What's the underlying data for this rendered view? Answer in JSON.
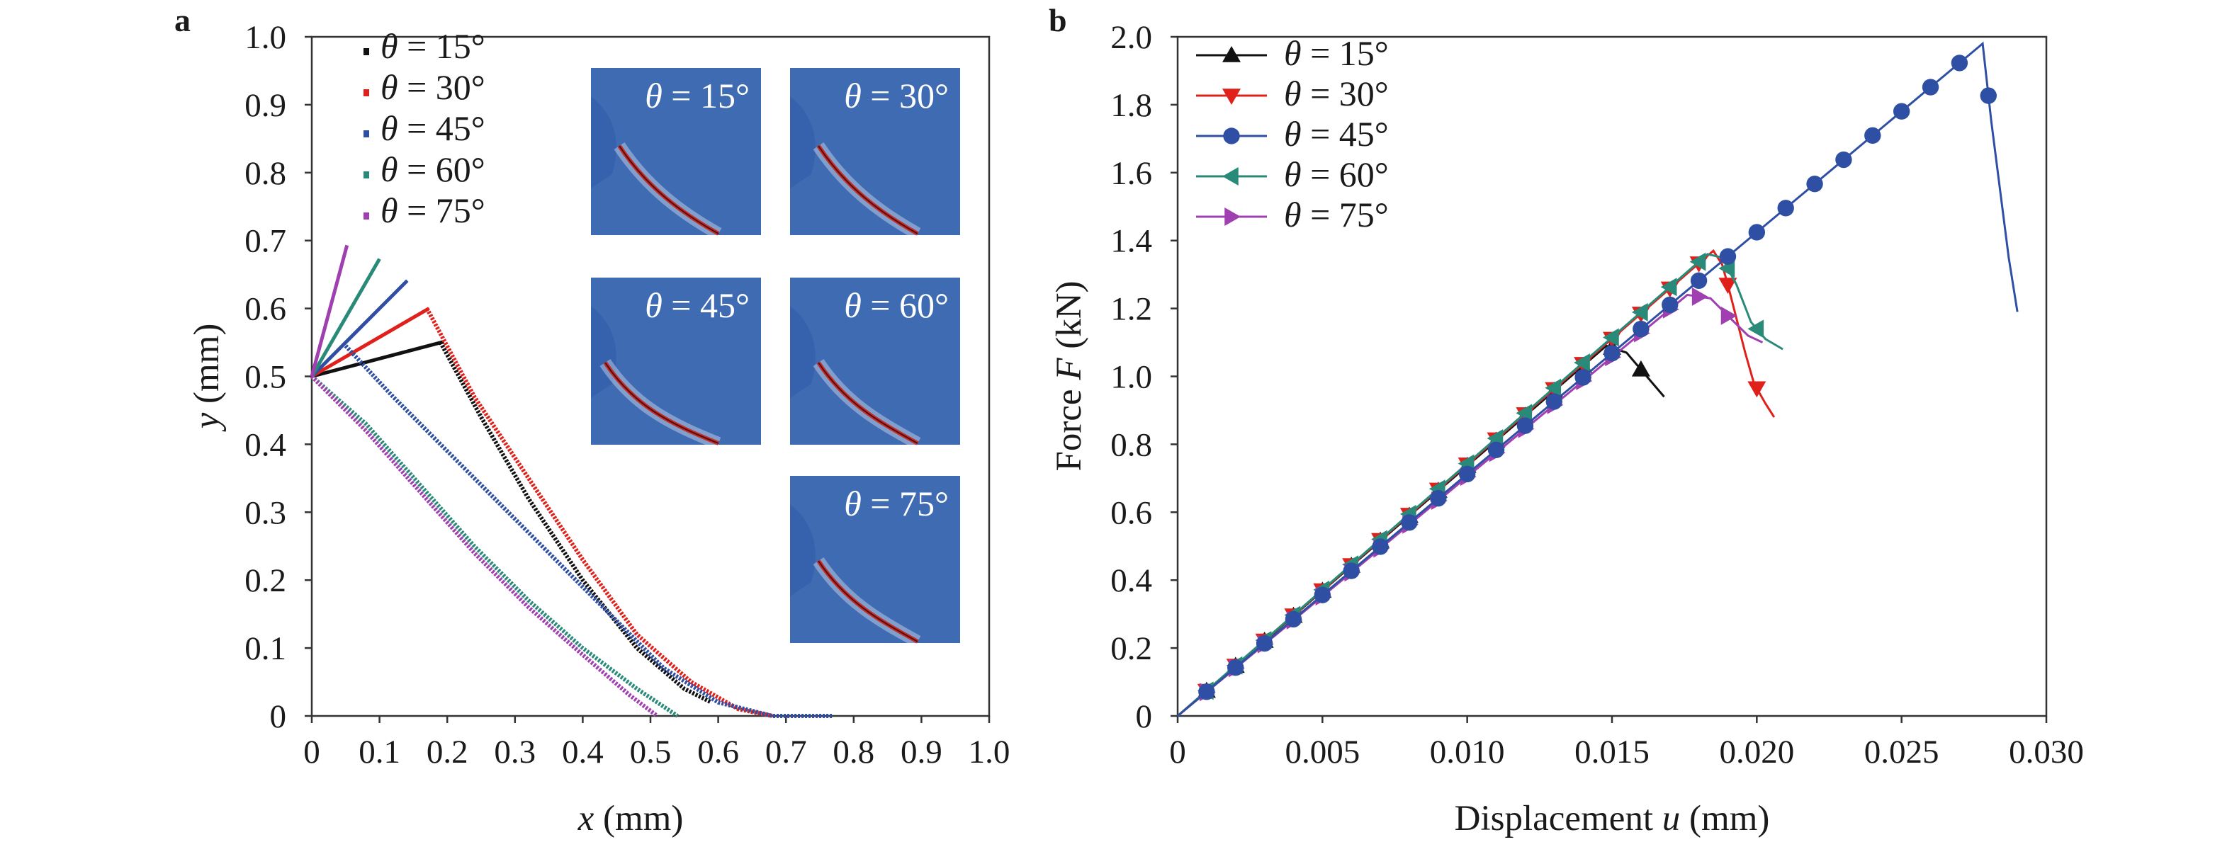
{
  "chart_data": [
    {
      "panel_label": "a",
      "type": "line",
      "xlabel_var": "x",
      "xlabel_unit": " (mm)",
      "ylabel_var": "y",
      "ylabel_unit": " (mm)",
      "xlim": [
        0,
        1.0
      ],
      "ylim": [
        0,
        1.0
      ],
      "xticks": [
        "0",
        "0.1",
        "0.2",
        "0.3",
        "0.4",
        "0.5",
        "0.6",
        "0.7",
        "0.8",
        "0.9",
        "1.0"
      ],
      "yticks": [
        "0",
        "0.1",
        "0.2",
        "0.3",
        "0.4",
        "0.5",
        "0.6",
        "0.7",
        "0.8",
        "0.9",
        "1.0"
      ],
      "legend_position": "top-left",
      "series": [
        {
          "name": "θ = 15°",
          "theta": "15°",
          "color": "#111111",
          "notch": [
            [
              0,
              0.5
            ],
            [
              0.195,
              0.551
            ],
            [
              0,
              0.5
            ]
          ],
          "crack": [
            [
              0.19,
              0.55
            ],
            [
              0.25,
              0.44
            ],
            [
              0.32,
              0.32
            ],
            [
              0.4,
              0.2
            ],
            [
              0.48,
              0.1
            ],
            [
              0.55,
              0.04
            ],
            [
              0.59,
              0.02
            ]
          ]
        },
        {
          "name": "θ = 30°",
          "theta": "30°",
          "color": "#e0201b",
          "notch": [
            [
              0,
              0.5
            ],
            [
              0.173,
              0.6
            ],
            [
              0,
              0.5
            ]
          ],
          "crack": [
            [
              0.17,
              0.6
            ],
            [
              0.24,
              0.47
            ],
            [
              0.32,
              0.35
            ],
            [
              0.4,
              0.23
            ],
            [
              0.48,
              0.12
            ],
            [
              0.56,
              0.05
            ],
            [
              0.63,
              0.01
            ],
            [
              0.68,
              0.0
            ]
          ]
        },
        {
          "name": "θ = 45°",
          "theta": "45°",
          "color": "#2e4fa3",
          "notch": [
            [
              0,
              0.5
            ],
            [
              0.141,
              0.641
            ],
            [
              0,
              0.5
            ]
          ],
          "crack": [
            [
              0.05,
              0.545
            ],
            [
              0.12,
              0.47
            ],
            [
              0.2,
              0.39
            ],
            [
              0.28,
              0.31
            ],
            [
              0.36,
              0.23
            ],
            [
              0.44,
              0.15
            ],
            [
              0.52,
              0.07
            ],
            [
              0.6,
              0.02
            ],
            [
              0.68,
              0.0
            ],
            [
              0.77,
              0.0
            ]
          ]
        },
        {
          "name": "θ = 60°",
          "theta": "60°",
          "color": "#2a8a7a",
          "notch": [
            [
              0,
              0.5
            ],
            [
              0.1,
              0.673
            ],
            [
              0,
              0.5
            ]
          ],
          "crack": [
            [
              0.0,
              0.5
            ],
            [
              0.08,
              0.43
            ],
            [
              0.16,
              0.34
            ],
            [
              0.24,
              0.25
            ],
            [
              0.32,
              0.17
            ],
            [
              0.4,
              0.1
            ],
            [
              0.48,
              0.04
            ],
            [
              0.54,
              0.0
            ]
          ]
        },
        {
          "name": "θ = 75°",
          "theta": "75°",
          "color": "#a040b0",
          "notch": [
            [
              0,
              0.5
            ],
            [
              0.052,
              0.693
            ],
            [
              0,
              0.5
            ]
          ],
          "crack": [
            [
              0.0,
              0.5
            ],
            [
              0.08,
              0.42
            ],
            [
              0.16,
              0.33
            ],
            [
              0.24,
              0.24
            ],
            [
              0.32,
              0.16
            ],
            [
              0.4,
              0.09
            ],
            [
              0.47,
              0.03
            ],
            [
              0.51,
              0.0
            ]
          ]
        }
      ],
      "insets": [
        {
          "label_var": "θ",
          "label_val": " = 15°"
        },
        {
          "label_var": "θ",
          "label_val": " = 30°"
        },
        {
          "label_var": "θ",
          "label_val": " = 45°"
        },
        {
          "label_var": "θ",
          "label_val": " = 60°"
        },
        {
          "label_var": "θ",
          "label_val": " = 75°"
        }
      ]
    },
    {
      "panel_label": "b",
      "type": "line",
      "xlabel_text": "Displacement ",
      "xlabel_var": "u",
      "xlabel_unit": " (mm)",
      "ylabel_text": "Force ",
      "ylabel_var": "F",
      "ylabel_unit": " (kN)",
      "xlim": [
        0,
        0.03
      ],
      "ylim": [
        0,
        2.0
      ],
      "xticks": [
        "0",
        "0.005",
        "0.010",
        "0.015",
        "0.020",
        "0.025",
        "0.030"
      ],
      "yticks": [
        "0",
        "0.2",
        "0.4",
        "0.6",
        "0.8",
        "1.0",
        "1.2",
        "1.4",
        "1.6",
        "1.8",
        "2.0"
      ],
      "legend_position": "top-left",
      "series": [
        {
          "name": "θ = 15°",
          "theta": "15°",
          "color": "#111111",
          "marker": "triangle-up",
          "peak": [
            0.0148,
            1.09
          ],
          "post": [
            [
              0.0148,
              1.09
            ],
            [
              0.0155,
              1.07
            ],
            [
              0.016,
              1.02
            ],
            [
              0.0164,
              0.98
            ],
            [
              0.0168,
              0.94
            ]
          ],
          "markers_x": [
            0.001,
            0.002,
            0.003,
            0.004,
            0.005,
            0.006,
            0.007,
            0.008,
            0.009,
            0.01,
            0.011,
            0.012,
            0.013,
            0.014,
            0.015,
            0.016
          ]
        },
        {
          "name": "θ = 30°",
          "theta": "30°",
          "color": "#e0201b",
          "marker": "triangle-down",
          "peak": [
            0.0185,
            1.37
          ],
          "post": [
            [
              0.0185,
              1.37
            ],
            [
              0.0188,
              1.33
            ],
            [
              0.019,
              1.27
            ],
            [
              0.0193,
              1.17
            ],
            [
              0.0196,
              1.07
            ],
            [
              0.0199,
              0.98
            ],
            [
              0.0203,
              0.92
            ],
            [
              0.0206,
              0.88
            ]
          ],
          "markers_x": [
            0.001,
            0.002,
            0.003,
            0.004,
            0.005,
            0.006,
            0.007,
            0.008,
            0.009,
            0.01,
            0.011,
            0.012,
            0.013,
            0.014,
            0.015,
            0.016,
            0.017,
            0.018,
            0.019,
            0.02
          ]
        },
        {
          "name": "θ = 45°",
          "theta": "45°",
          "color": "#2e4fa3",
          "marker": "circle",
          "peak": [
            0.0278,
            1.98
          ],
          "post": [
            [
              0.0278,
              1.98
            ],
            [
              0.0281,
              1.75
            ],
            [
              0.0284,
              1.55
            ],
            [
              0.0287,
              1.35
            ],
            [
              0.029,
              1.19
            ]
          ],
          "markers_x": [
            0.001,
            0.002,
            0.003,
            0.004,
            0.005,
            0.006,
            0.007,
            0.008,
            0.009,
            0.01,
            0.011,
            0.012,
            0.013,
            0.014,
            0.015,
            0.016,
            0.017,
            0.018,
            0.019,
            0.02,
            0.021,
            0.022,
            0.023,
            0.024,
            0.025,
            0.026,
            0.027,
            0.028
          ]
        },
        {
          "name": "θ = 60°",
          "theta": "60°",
          "color": "#2a8a7a",
          "marker": "triangle-left",
          "peak": [
            0.0183,
            1.36
          ],
          "post": [
            [
              0.0183,
              1.36
            ],
            [
              0.0188,
              1.35
            ],
            [
              0.0193,
              1.27
            ],
            [
              0.0198,
              1.16
            ],
            [
              0.0203,
              1.11
            ],
            [
              0.0209,
              1.08
            ]
          ],
          "markers_x": [
            0.001,
            0.002,
            0.003,
            0.004,
            0.005,
            0.006,
            0.007,
            0.008,
            0.009,
            0.01,
            0.011,
            0.012,
            0.013,
            0.014,
            0.015,
            0.016,
            0.017,
            0.018,
            0.019,
            0.02
          ]
        },
        {
          "name": "θ = 75°",
          "theta": "75°",
          "color": "#a040b0",
          "marker": "triangle-right",
          "peak": [
            0.0176,
            1.24
          ],
          "post": [
            [
              0.0176,
              1.24
            ],
            [
              0.0184,
              1.23
            ],
            [
              0.0191,
              1.17
            ],
            [
              0.0197,
              1.12
            ],
            [
              0.0202,
              1.1
            ]
          ],
          "markers_x": [
            0.001,
            0.002,
            0.003,
            0.004,
            0.005,
            0.006,
            0.007,
            0.008,
            0.009,
            0.01,
            0.011,
            0.012,
            0.013,
            0.014,
            0.015,
            0.016,
            0.017,
            0.018,
            0.019
          ]
        }
      ]
    }
  ]
}
